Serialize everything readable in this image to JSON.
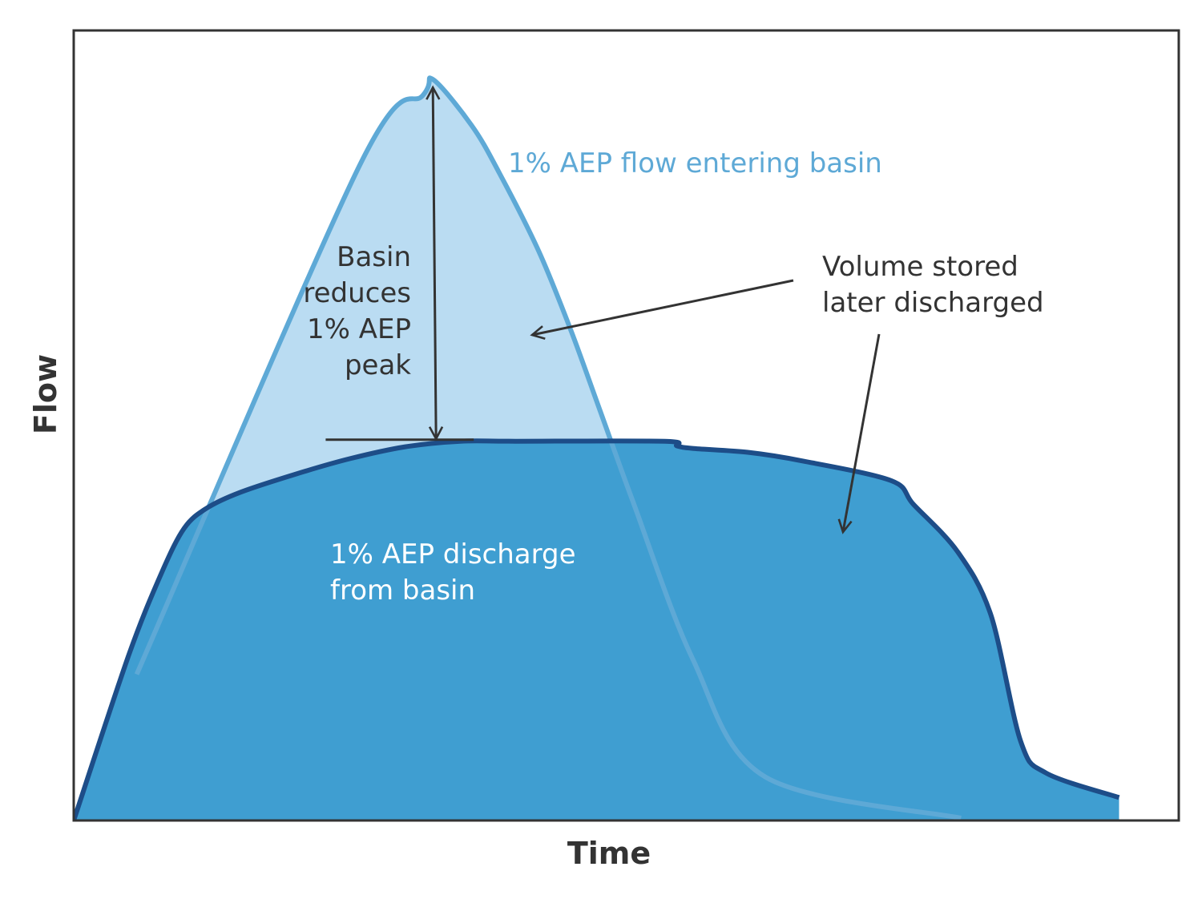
{
  "chart_data": {
    "type": "area",
    "title": "",
    "xlabel": "Time",
    "ylabel": "Flow",
    "axis_ticks": "none",
    "grid": false,
    "xlim": [
      0,
      100
    ],
    "ylim": [
      0,
      100
    ],
    "series": [
      {
        "label": "1% AEP flow entering basin",
        "color": "#5ea9d6",
        "fill": "#badcf2",
        "x": [
          5.7,
          25.9,
          31.6,
          32.5,
          36.0,
          38.5,
          42.1,
          45.0,
          47.6,
          50.7,
          56.0,
          62.6,
          80.3
        ],
        "y": [
          18.5,
          83.0,
          91.8,
          93.8,
          88.0,
          82.0,
          72.0,
          62.0,
          52.0,
          40.0,
          20.5,
          5.5,
          0.3
        ]
      },
      {
        "label": "1% AEP discharge from basin",
        "color": "#1d4d88",
        "fill": "#3f9ed1",
        "x": [
          0,
          5.0,
          8.0,
          10.0,
          12.0,
          15.0,
          20.0,
          25.0,
          30.0,
          35.0,
          40.0,
          53.5,
          54.6,
          56.0,
          61.0,
          66.0,
          74.0,
          76.0,
          80.0,
          83.0,
          85.7,
          88.0,
          94.6
        ],
        "y": [
          0,
          21.0,
          31.5,
          37.0,
          39.5,
          41.5,
          43.8,
          45.8,
          47.3,
          48.0,
          48.0,
          48.0,
          47.4,
          47.1,
          46.6,
          45.5,
          43.0,
          40.0,
          34.0,
          26.0,
          10.0,
          6.0,
          2.9
        ]
      }
    ],
    "annotations": {
      "inflow_label": "1% AEP flow entering basin",
      "outflow_label": [
        "1% AEP discharge",
        "from basin"
      ],
      "peak_reduction_label": [
        "Basin",
        "reduces",
        "1% AEP",
        "peak"
      ],
      "storage_label": [
        "Volume stored",
        "later discharged"
      ]
    },
    "colors": {
      "inflow_line": "#5ea9d6",
      "inflow_fill": "#badcf2",
      "outflow_line": "#1d4d88",
      "outflow_fill": "#3f9ed1",
      "stored_volume_fill": "#5fa8d3",
      "text_dark": "#333333",
      "text_inflow": "#5ea9d6",
      "text_outflow": "#ffffff"
    }
  }
}
